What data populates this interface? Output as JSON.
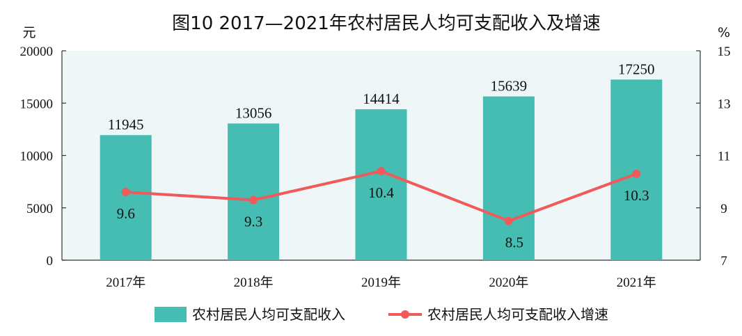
{
  "chart_data": {
    "type": "bar+line",
    "title": "图10  2017—2021年农村居民人均可支配收入及增速",
    "categories": [
      "2017年",
      "2018年",
      "2019年",
      "2020年",
      "2021年"
    ],
    "y_left": {
      "unit": "元",
      "range": [
        0,
        20000
      ],
      "ticks": [
        0,
        5000,
        10000,
        15000,
        20000
      ]
    },
    "y_right": {
      "unit": "%",
      "range": [
        7,
        15
      ],
      "ticks": [
        7,
        9,
        11,
        13,
        15
      ]
    },
    "series": [
      {
        "name": "农村居民人均可支配收入",
        "type": "bar",
        "axis": "left",
        "color": "#45bdb2",
        "values": [
          11945,
          13056,
          14414,
          15639,
          17250
        ]
      },
      {
        "name": "农村居民人均可支配收入增速",
        "type": "line",
        "axis": "right",
        "color": "#f05a5a",
        "values": [
          9.6,
          9.3,
          10.4,
          8.5,
          10.3
        ]
      }
    ],
    "plot_background": "#eef6f7",
    "legend_position": "bottom"
  }
}
